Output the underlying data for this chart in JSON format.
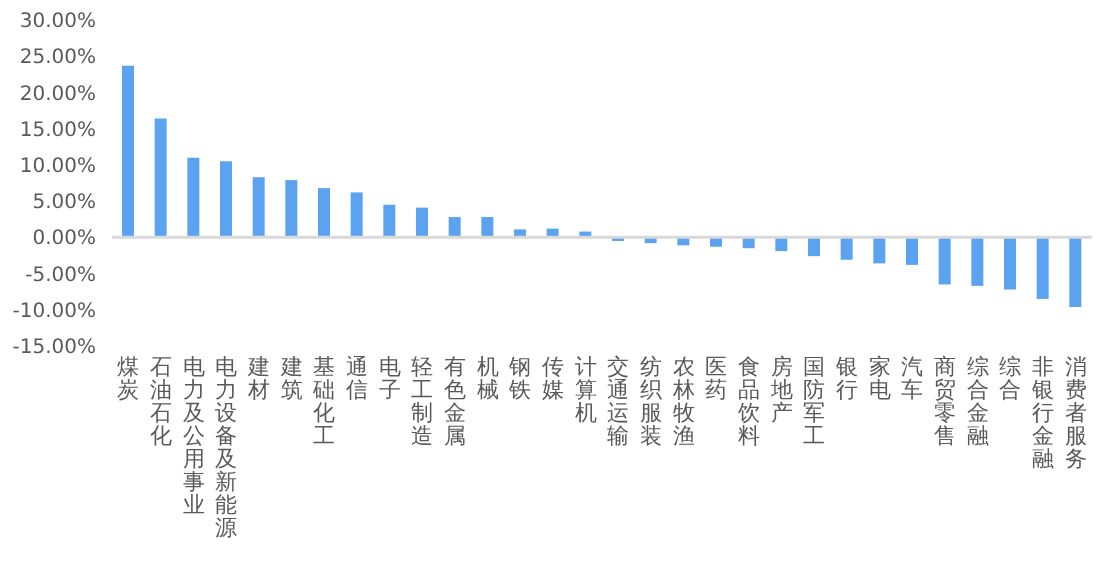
{
  "chart_data": {
    "type": "bar",
    "categories": [
      "煤炭",
      "石油石化",
      "电力及公用事业",
      "电力设备及新能源",
      "建材",
      "建筑",
      "基础化工",
      "通信",
      "电子",
      "轻工制造",
      "有色金属",
      "机械",
      "钢铁",
      "传媒",
      "计算机",
      "交通运输",
      "纺织服装",
      "农林牧渔",
      "医药",
      "食品饮料",
      "房地产",
      "国防军工",
      "银行",
      "家电",
      "汽车",
      "商贸零售",
      "综合金融",
      "综合",
      "非银行金融",
      "消费者服务"
    ],
    "values": [
      23.7,
      16.4,
      11.0,
      10.5,
      8.3,
      7.9,
      6.8,
      6.2,
      4.5,
      4.1,
      2.8,
      2.8,
      1.1,
      1.2,
      0.8,
      -0.5,
      -0.8,
      -1.1,
      -1.3,
      -1.5,
      -1.9,
      -2.6,
      -3.1,
      -3.6,
      -3.8,
      -6.5,
      -6.7,
      -7.2,
      -8.5,
      -9.6
    ],
    "color": "#5ba3f0",
    "ylim": [
      -15,
      30
    ],
    "yticks": [
      {
        "value": -15,
        "label": "-15.00%"
      },
      {
        "value": -10,
        "label": "-10.00%"
      },
      {
        "value": -5,
        "label": "-5.00%"
      },
      {
        "value": 0,
        "label": "0.00%"
      },
      {
        "value": 5,
        "label": "5.00%"
      },
      {
        "value": 10,
        "label": "10.00%"
      },
      {
        "value": 15,
        "label": "15.00%"
      },
      {
        "value": 20,
        "label": "20.00%"
      },
      {
        "value": 25,
        "label": "25.00%"
      },
      {
        "value": 30,
        "label": "30.00%"
      }
    ],
    "ref_lines": [
      {
        "axis": "y",
        "value": 0,
        "color": "#d9d9d9"
      }
    ],
    "grid": false,
    "legend": false
  }
}
